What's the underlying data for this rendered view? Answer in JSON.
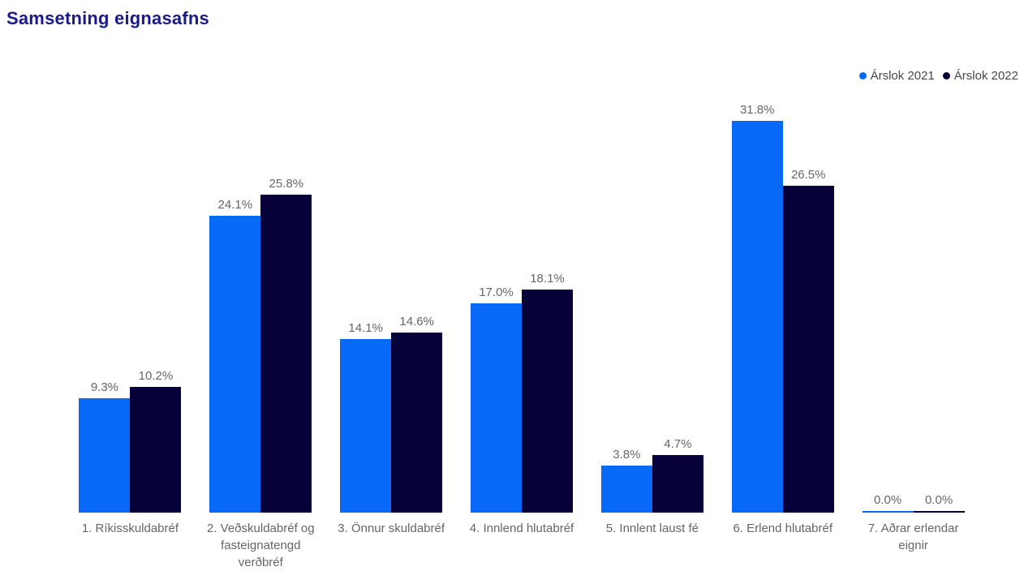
{
  "page": {
    "title": "Samsetning eignasafns"
  },
  "colors": {
    "title": "#1a1c89",
    "series_2021": "#0868f8",
    "series_2022": "#060139",
    "label_gray": "#666666",
    "legend_text": "#474747"
  },
  "chart_data": {
    "type": "bar",
    "title": "Samsetning eignasafns",
    "categories": [
      "1. Ríkisskuldabréf",
      "2. Veðskuldabréf og fasteignatengd verðbréf",
      "3. Önnur skuldabréf",
      "4. Innlend hlutabréf",
      "5. Innlent laust fé",
      "6. Erlend hlutabréf",
      "7. Aðrar erlendar eignir"
    ],
    "series": [
      {
        "name": "Árslok 2021",
        "key": "arslok-2021",
        "color": "#0868f8",
        "values": [
          9.3,
          24.1,
          14.1,
          17.0,
          3.8,
          31.8,
          0.0
        ]
      },
      {
        "name": "Árslok 2022",
        "key": "arslok-2022",
        "color": "#060139",
        "values": [
          10.2,
          25.8,
          14.6,
          18.1,
          4.7,
          26.5,
          0.0
        ]
      }
    ],
    "value_label_format": "0.0%",
    "xlabel": "",
    "ylabel": "",
    "ylim": [
      0,
      35
    ],
    "grid": false,
    "axis_lines": false,
    "legend_position": "top-right"
  }
}
